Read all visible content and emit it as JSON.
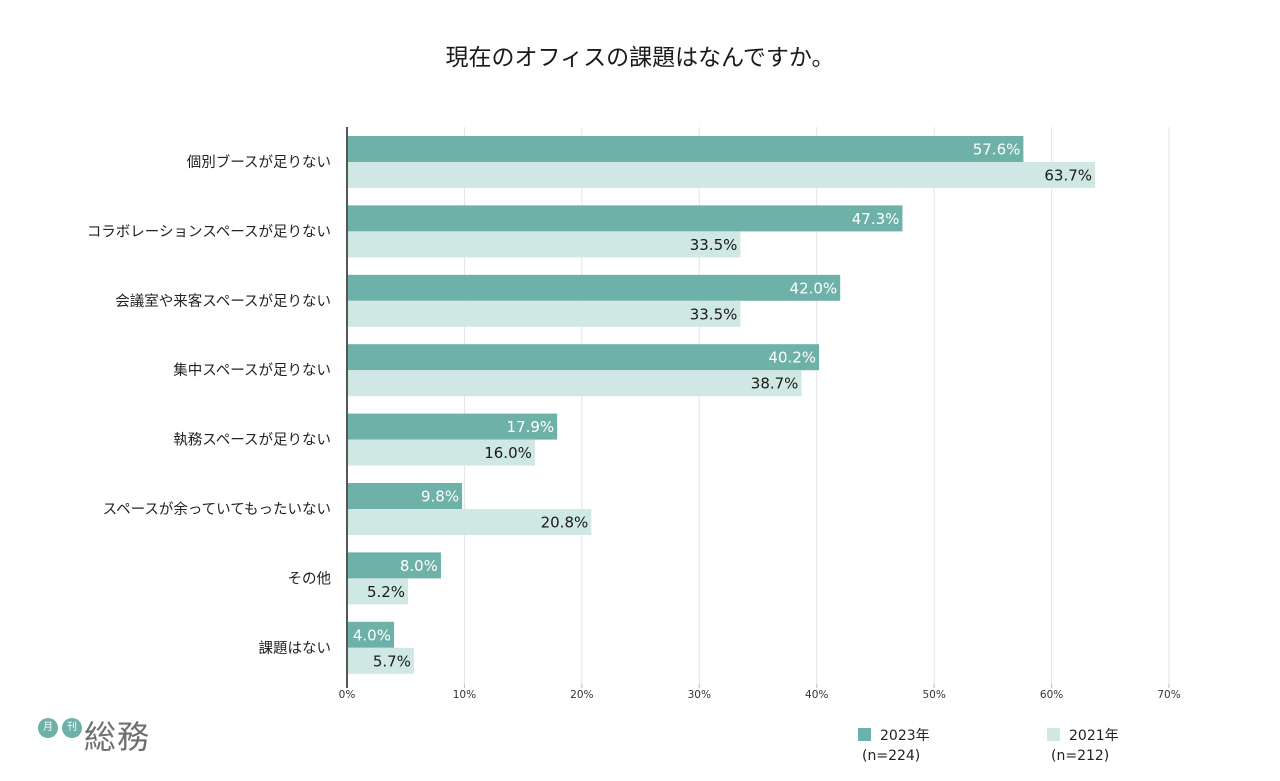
{
  "chart_data": {
    "type": "bar",
    "orientation": "horizontal",
    "title": "現在のオフィスの課題はなんですか。",
    "xlabel": "",
    "ylabel": "",
    "xlim": [
      0,
      70
    ],
    "x_ticks": [
      "0%",
      "10%",
      "20%",
      "30%",
      "40%",
      "50%",
      "60%",
      "70%"
    ],
    "x_tick_values": [
      0,
      10,
      20,
      30,
      40,
      50,
      60,
      70
    ],
    "grid": true,
    "legend_position": "bottom-right",
    "categories": [
      "個別ブースが足りない",
      "コラボレーションスペースが足りない",
      "会議室や来客スペースが足りない",
      "集中スペースが足りない",
      "執務スペースが足りない",
      "スペースが余っていてもったいない",
      "その他",
      "課題はない"
    ],
    "series": [
      {
        "name": "2023年",
        "sample": "(n=224)",
        "color": "#6db1a8",
        "label_color": "#ffffff",
        "values": [
          57.6,
          47.3,
          42.0,
          40.2,
          17.9,
          9.8,
          8.0,
          4.0
        ],
        "labels": [
          "57.6%",
          "47.3%",
          "42.0%",
          "40.2%",
          "17.9%",
          "9.8%",
          "8.0%",
          "4.0%"
        ]
      },
      {
        "name": "2021年",
        "sample": "(n=212)",
        "color": "#cfe8e4",
        "label_color": "#1a1a1a",
        "values": [
          63.7,
          33.5,
          33.5,
          38.7,
          16.0,
          20.8,
          5.2,
          5.7
        ],
        "labels": [
          "63.7%",
          "33.5%",
          "33.5%",
          "38.7%",
          "16.0%",
          "20.8%",
          "5.2%",
          "5.7%"
        ]
      }
    ]
  },
  "logo": {
    "badge_1": "月",
    "badge_2": "刊",
    "name": "総務"
  },
  "colors": {
    "grid": "#e3e3e3",
    "axis": "#555555"
  }
}
